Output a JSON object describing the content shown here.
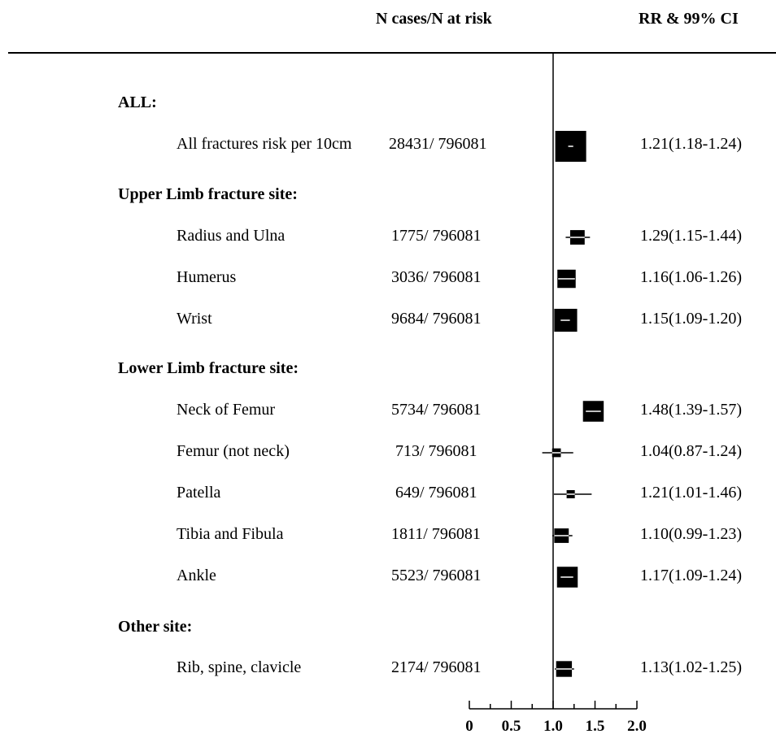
{
  "chart_data": {
    "type": "forest",
    "headers": {
      "cases": "N cases/N at risk",
      "rr": "RR & 99% CI"
    },
    "x_axis": {
      "ticks": [
        0,
        0.5,
        1.0,
        1.5,
        2.0
      ],
      "tick_labels": [
        "0",
        "0.5",
        "1.0",
        "1.5",
        "2.0"
      ],
      "reference_line": 1.0,
      "xlim": [
        0,
        2.0
      ]
    },
    "sections": [
      {
        "title": "ALL:",
        "rows": [
          {
            "label": "All fractures risk per 10cm",
            "cases": "28431/ 796081",
            "rr": 1.21,
            "lo": 1.18,
            "hi": 1.24,
            "rr_text": "1.21(1.18-1.24)",
            "box_weight": 1.0
          }
        ]
      },
      {
        "title": "Upper Limb fracture site:",
        "rows": [
          {
            "label": "Radius and Ulna",
            "cases": "1775/ 796081",
            "rr": 1.29,
            "lo": 1.15,
            "hi": 1.44,
            "rr_text": "1.29(1.15-1.44)",
            "box_weight": 0.22
          },
          {
            "label": "Humerus",
            "cases": "3036/ 796081",
            "rr": 1.16,
            "lo": 1.06,
            "hi": 1.26,
            "rr_text": "1.16(1.06-1.26)",
            "box_weight": 0.35
          },
          {
            "label": "Wrist",
            "cases": "9684/ 796081",
            "rr": 1.15,
            "lo": 1.09,
            "hi": 1.2,
            "rr_text": "1.15(1.09-1.20)",
            "box_weight": 0.55
          }
        ]
      },
      {
        "title": "Lower Limb fracture site:",
        "rows": [
          {
            "label": "Neck of Femur",
            "cases": "5734/ 796081",
            "rr": 1.48,
            "lo": 1.39,
            "hi": 1.57,
            "rr_text": "1.48(1.39-1.57)",
            "box_weight": 0.45
          },
          {
            "label": "Femur (not neck)",
            "cases": "713/ 796081",
            "rr": 1.04,
            "lo": 0.87,
            "hi": 1.24,
            "rr_text": "1.04(0.87-1.24)",
            "box_weight": 0.08
          },
          {
            "label": "Patella",
            "cases": "649/ 796081",
            "rr": 1.21,
            "lo": 1.01,
            "hi": 1.46,
            "rr_text": "1.21(1.01-1.46)",
            "box_weight": 0.07
          },
          {
            "label": "Tibia and Fibula",
            "cases": "1811/ 796081",
            "rr": 1.1,
            "lo": 0.99,
            "hi": 1.23,
            "rr_text": "1.10(0.99-1.23)",
            "box_weight": 0.22
          },
          {
            "label": "Ankle",
            "cases": "5523/ 796081",
            "rr": 1.17,
            "lo": 1.09,
            "hi": 1.24,
            "rr_text": "1.17(1.09-1.24)",
            "box_weight": 0.45
          }
        ]
      },
      {
        "title": "Other site:",
        "rows": [
          {
            "label": "Rib, spine, clavicle",
            "cases": "2174/ 796081",
            "rr": 1.13,
            "lo": 1.02,
            "hi": 1.25,
            "rr_text": "1.13(1.02-1.25)",
            "box_weight": 0.26
          }
        ]
      }
    ]
  }
}
